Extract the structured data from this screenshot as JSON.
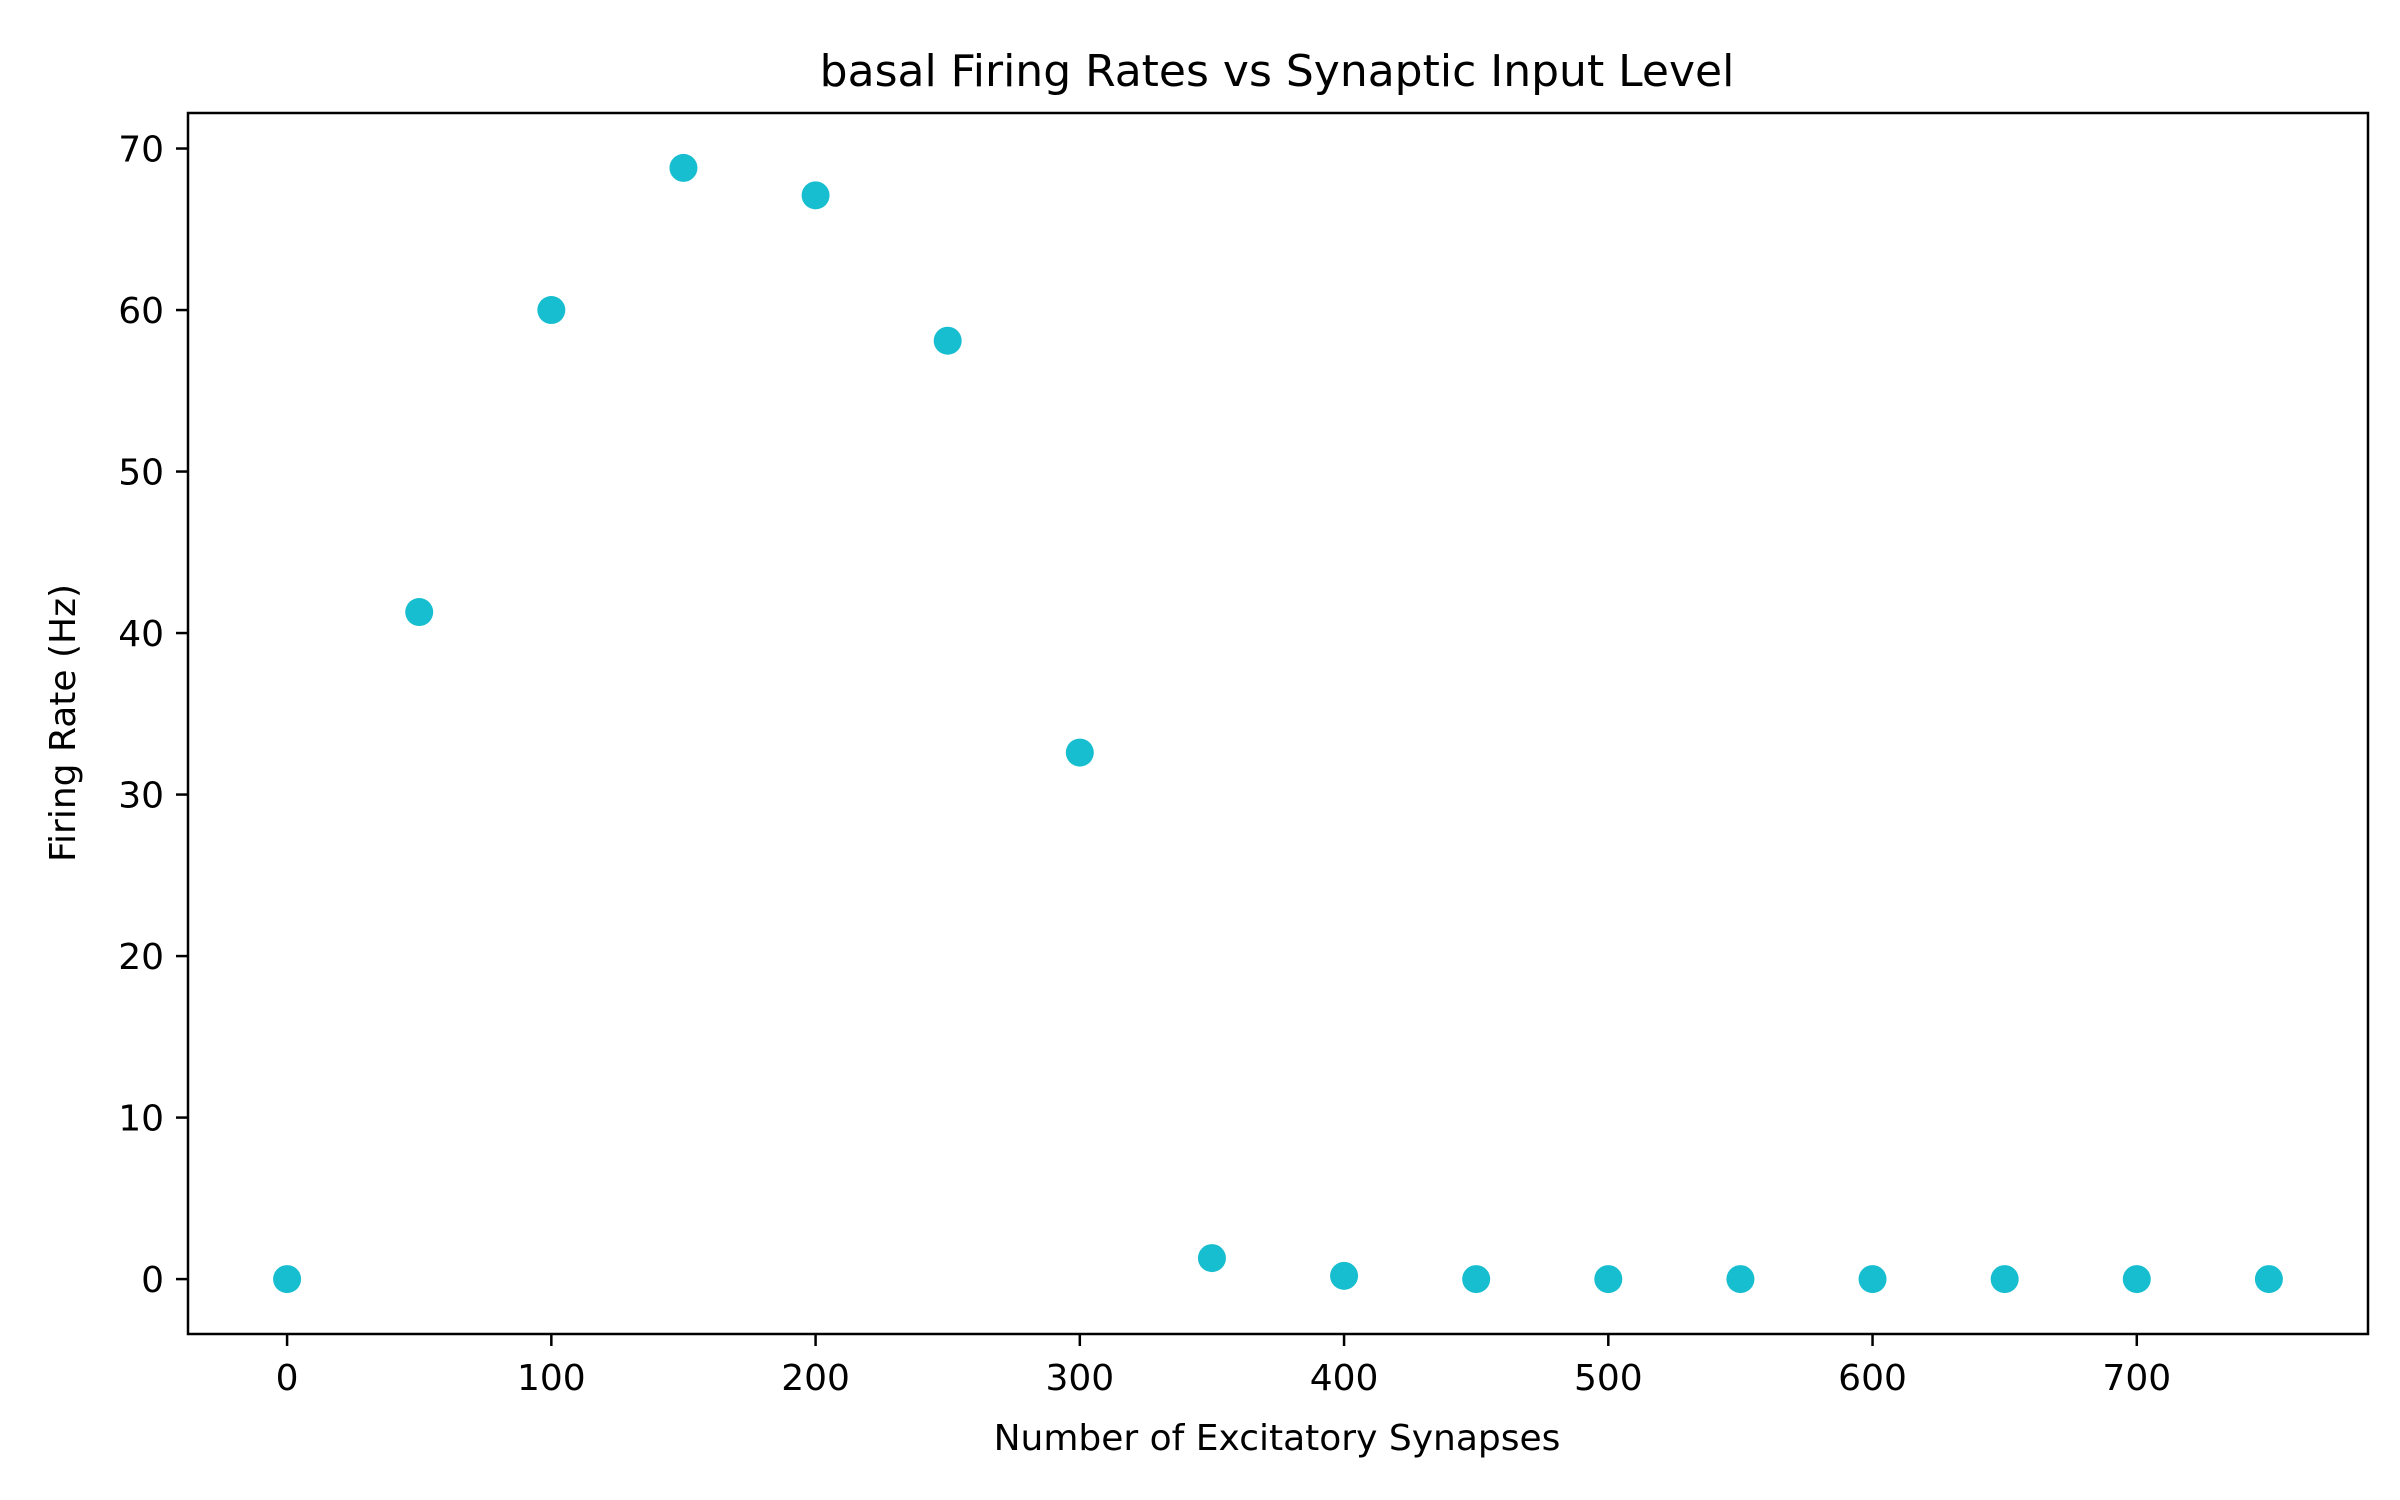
{
  "chart_data": {
    "type": "scatter",
    "title": "basal Firing Rates vs Synaptic Input Level",
    "xlabel": "Number of Excitatory Synapses",
    "ylabel": "Firing Rate (Hz)",
    "xlim": [
      -37.5,
      787.5
    ],
    "ylim": [
      -3.4,
      72.2
    ],
    "xticks": [
      0,
      100,
      200,
      300,
      400,
      500,
      600,
      700
    ],
    "yticks": [
      0,
      10,
      20,
      30,
      40,
      50,
      60,
      70
    ],
    "grid": false,
    "series": [
      {
        "color": "#17becf",
        "x": [
          0,
          50,
          100,
          150,
          200,
          250,
          300,
          350,
          400,
          450,
          500,
          550,
          600,
          650,
          700,
          750
        ],
        "y": [
          0,
          41.3,
          60.0,
          68.8,
          67.1,
          58.1,
          32.6,
          1.3,
          0.2,
          0,
          0,
          0,
          0,
          0,
          0,
          0
        ]
      }
    ]
  }
}
